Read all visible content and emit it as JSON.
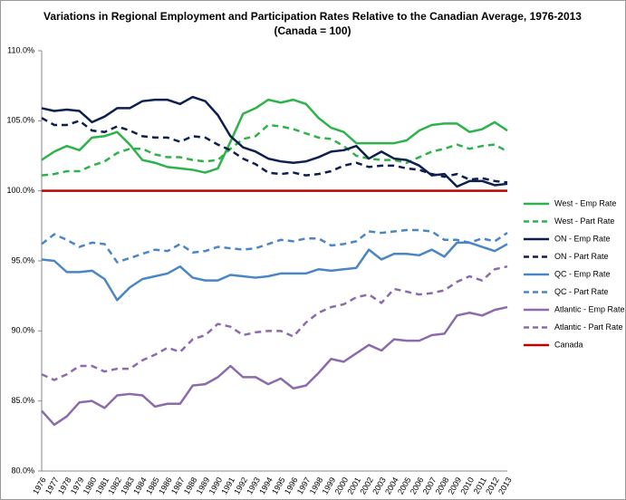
{
  "chart_data": {
    "type": "line",
    "title": "Variations in Regional Employment and Participation Rates Relative to the Canadian Average, 1976-2013",
    "subtitle": "(Canada = 100)",
    "categories": [
      "1976",
      "1977",
      "1978",
      "1979",
      "1980",
      "1981",
      "1982",
      "1983",
      "1984",
      "1985",
      "1986",
      "1987",
      "1988",
      "1989",
      "1990",
      "1991",
      "1992",
      "1993",
      "1994",
      "1995",
      "1996",
      "1997",
      "1998",
      "1999",
      "2000",
      "2001",
      "2002",
      "2003",
      "2004",
      "2005",
      "2006",
      "2007",
      "2008",
      "2009",
      "2010",
      "2011",
      "2012",
      "2013"
    ],
    "ylim": [
      80,
      110
    ],
    "yticks": [
      {
        "value": 80,
        "label": "80.0%"
      },
      {
        "value": 85,
        "label": "85.0%"
      },
      {
        "value": 90,
        "label": "90.0%"
      },
      {
        "value": 95,
        "label": "95.0%"
      },
      {
        "value": 100,
        "label": "100.0%"
      },
      {
        "value": 105,
        "label": "105.0%"
      },
      {
        "value": 110,
        "label": "110.0%"
      }
    ],
    "grid": false,
    "legend": "right",
    "series": [
      {
        "name": "West - Emp Rate",
        "color": "#2db34a",
        "style": "solid",
        "values": [
          102.2,
          102.8,
          103.2,
          102.9,
          103.8,
          103.9,
          104.2,
          103.3,
          102.2,
          102.0,
          101.7,
          101.6,
          101.5,
          101.3,
          101.6,
          103.5,
          105.5,
          105.9,
          106.5,
          106.3,
          106.5,
          106.2,
          105.2,
          104.5,
          104.2,
          103.4,
          103.4,
          103.4,
          103.4,
          103.6,
          104.3,
          104.7,
          104.8,
          104.8,
          104.2,
          104.4,
          104.9,
          104.3
        ]
      },
      {
        "name": "West - Part Rate",
        "color": "#2db34a",
        "style": "dashed",
        "values": [
          101.1,
          101.2,
          101.4,
          101.4,
          101.8,
          102.1,
          102.7,
          103.0,
          103.0,
          102.6,
          102.4,
          102.4,
          102.2,
          102.1,
          102.2,
          103.0,
          103.7,
          103.9,
          104.7,
          104.6,
          104.4,
          104.1,
          103.8,
          103.7,
          103.2,
          102.5,
          102.3,
          102.2,
          102.2,
          102.0,
          102.4,
          102.8,
          103.0,
          103.3,
          103.0,
          103.2,
          103.3,
          102.8
        ]
      },
      {
        "name": "ON - Emp Rate",
        "color": "#0d1f4f",
        "style": "solid",
        "values": [
          105.9,
          105.7,
          105.8,
          105.7,
          104.9,
          105.3,
          105.9,
          105.9,
          106.4,
          106.5,
          106.5,
          106.2,
          106.7,
          106.4,
          105.4,
          103.9,
          103.1,
          102.8,
          102.3,
          102.1,
          102.0,
          102.1,
          102.4,
          102.8,
          102.9,
          103.2,
          102.3,
          102.8,
          102.3,
          102.2,
          101.8,
          101.1,
          101.2,
          100.3,
          100.7,
          100.7,
          100.4,
          100.5
        ]
      },
      {
        "name": "ON - Part Rate",
        "color": "#0d1f4f",
        "style": "dashed",
        "values": [
          105.2,
          104.7,
          104.7,
          105.0,
          104.3,
          104.2,
          104.6,
          104.3,
          103.9,
          103.8,
          103.8,
          103.5,
          103.9,
          103.8,
          103.3,
          102.9,
          102.3,
          101.9,
          101.3,
          101.2,
          101.3,
          101.1,
          101.2,
          101.4,
          101.8,
          102.0,
          101.7,
          101.8,
          101.8,
          101.6,
          101.5,
          101.2,
          101.0,
          101.2,
          100.8,
          100.9,
          100.7,
          100.6
        ]
      },
      {
        "name": "QC - Emp Rate",
        "color": "#4a86c5",
        "style": "solid",
        "values": [
          95.1,
          95.0,
          94.2,
          94.2,
          94.3,
          93.7,
          92.2,
          93.1,
          93.7,
          93.9,
          94.1,
          94.6,
          93.8,
          93.6,
          93.6,
          94.0,
          93.9,
          93.8,
          93.9,
          94.1,
          94.1,
          94.1,
          94.4,
          94.3,
          94.4,
          94.5,
          95.8,
          95.1,
          95.5,
          95.5,
          95.4,
          95.8,
          95.3,
          96.3,
          96.3,
          96.0,
          95.7,
          96.2
        ]
      },
      {
        "name": "QC - Part Rate",
        "color": "#4a86c5",
        "style": "dashed",
        "values": [
          96.2,
          96.9,
          96.5,
          96.0,
          96.3,
          96.2,
          94.9,
          95.2,
          95.5,
          95.8,
          95.7,
          96.2,
          95.6,
          95.7,
          96.0,
          95.9,
          95.8,
          95.9,
          96.2,
          96.5,
          96.4,
          96.6,
          96.6,
          96.1,
          96.2,
          96.4,
          97.1,
          97.0,
          97.1,
          97.2,
          97.2,
          97.1,
          96.5,
          96.5,
          96.3,
          96.6,
          96.4,
          97.0
        ]
      },
      {
        "name": "Atlantic - Emp Rate",
        "color": "#8b6bab",
        "style": "solid",
        "values": [
          84.3,
          83.3,
          83.9,
          84.9,
          85.0,
          84.5,
          85.4,
          85.5,
          85.4,
          84.6,
          84.8,
          84.8,
          86.1,
          86.2,
          86.7,
          87.5,
          86.7,
          86.7,
          86.2,
          86.6,
          85.9,
          86.1,
          87.0,
          88.0,
          87.8,
          88.4,
          89.0,
          88.6,
          89.4,
          89.3,
          89.3,
          89.7,
          89.8,
          91.1,
          91.3,
          91.1,
          91.5,
          91.7
        ]
      },
      {
        "name": "Atlantic - Part Rate",
        "color": "#8b6bab",
        "style": "dashed",
        "values": [
          86.9,
          86.5,
          86.9,
          87.5,
          87.5,
          87.1,
          87.3,
          87.3,
          87.9,
          88.3,
          88.8,
          88.5,
          89.4,
          89.7,
          90.5,
          90.3,
          89.7,
          89.9,
          90.0,
          90.0,
          89.6,
          90.6,
          91.3,
          91.7,
          91.9,
          92.4,
          92.6,
          92.0,
          93.0,
          92.8,
          92.6,
          92.7,
          92.9,
          93.5,
          93.9,
          93.6,
          94.4,
          94.6
        ]
      },
      {
        "name": "Canada",
        "color": "#c00000",
        "style": "solid",
        "values": [
          100,
          100,
          100,
          100,
          100,
          100,
          100,
          100,
          100,
          100,
          100,
          100,
          100,
          100,
          100,
          100,
          100,
          100,
          100,
          100,
          100,
          100,
          100,
          100,
          100,
          100,
          100,
          100,
          100,
          100,
          100,
          100,
          100,
          100,
          100,
          100,
          100,
          100
        ]
      }
    ]
  }
}
